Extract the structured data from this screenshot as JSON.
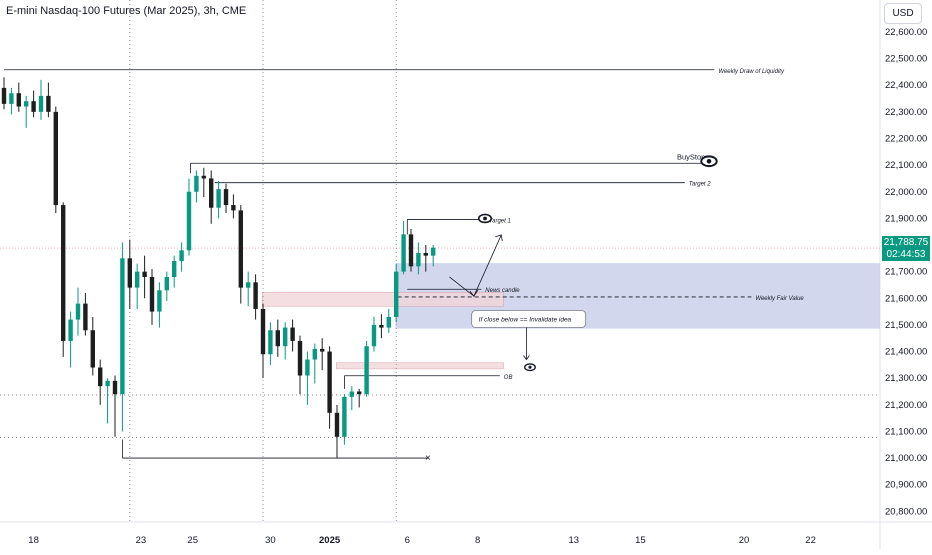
{
  "header": {
    "title": "E-mini Nasdaq-100 Futures (Mar 2025), 3h, CME",
    "currency": "USD"
  },
  "colors": {
    "up": "#089981",
    "down": "#1e1e1e",
    "fvg_zone": "#c7cdea",
    "ob_zone": "#f2d6db",
    "grid": "#9598a1"
  },
  "chart_data": {
    "type": "candlestick",
    "y_axis": {
      "ylim": [
        20760,
        22720
      ],
      "ticks": [
        20800,
        20900,
        21000,
        21100,
        21200,
        21300,
        21400,
        21500,
        21600,
        21700,
        21800,
        21900,
        22000,
        22100,
        22200,
        22300,
        22400,
        22500,
        22600
      ],
      "tick_labels": [
        "20,800.00",
        "20,900.00",
        "21,000.00",
        "21,100.00",
        "21,200.00",
        "21,300.00",
        "21,400.00",
        "21,500.00",
        "21,600.00",
        "21,700.00",
        "21,800.00",
        "21,900.00",
        "22,000.00",
        "22,100.00",
        "22,200.00",
        "22,300.00",
        "22,400.00",
        "22,500.00",
        "22,600.00"
      ]
    },
    "x_axis": {
      "labels": [
        {
          "label": "18",
          "bar": 4
        },
        {
          "label": "23",
          "bar": 18.5
        },
        {
          "label": "25",
          "bar": 25.5
        },
        {
          "label": "30",
          "bar": 36
        },
        {
          "label": "2025",
          "bar": 44
        },
        {
          "label": "6",
          "bar": 54.5
        },
        {
          "label": "8",
          "bar": 64
        },
        {
          "label": "13",
          "bar": 77
        },
        {
          "label": "15",
          "bar": 86
        },
        {
          "label": "20",
          "bar": 100
        },
        {
          "label": "22",
          "bar": 109
        }
      ],
      "vlines": [
        17,
        35,
        53
      ]
    },
    "candles": [
      [
        22390,
        22430,
        22310,
        22330
      ],
      [
        22330,
        22390,
        22290,
        22370
      ],
      [
        22370,
        22410,
        22300,
        22320
      ],
      [
        22320,
        22360,
        22240,
        22340
      ],
      [
        22340,
        22380,
        22280,
        22300
      ],
      [
        22300,
        22420,
        22270,
        22360
      ],
      [
        22360,
        22410,
        22280,
        22300
      ],
      [
        22300,
        22320,
        21920,
        21950
      ],
      [
        21950,
        21960,
        21380,
        21440
      ],
      [
        21440,
        21550,
        21340,
        21520
      ],
      [
        21520,
        21640,
        21460,
        21580
      ],
      [
        21580,
        21620,
        21460,
        21480
      ],
      [
        21480,
        21530,
        21310,
        21340
      ],
      [
        21340,
        21370,
        21200,
        21270
      ],
      [
        21270,
        21300,
        21130,
        21290
      ],
      [
        21290,
        21310,
        21080,
        21240
      ],
      [
        21240,
        21810,
        21100,
        21750
      ],
      [
        21750,
        21820,
        21560,
        21640
      ],
      [
        21640,
        21730,
        21560,
        21700
      ],
      [
        21700,
        21760,
        21600,
        21680
      ],
      [
        21680,
        21710,
        21500,
        21550
      ],
      [
        21550,
        21660,
        21490,
        21630
      ],
      [
        21630,
        21700,
        21590,
        21680
      ],
      [
        21680,
        21760,
        21640,
        21740
      ],
      [
        21740,
        21810,
        21700,
        21780
      ],
      [
        21780,
        22050,
        21760,
        22000
      ],
      [
        22000,
        22080,
        21960,
        22060
      ],
      [
        22060,
        22090,
        21980,
        22050
      ],
      [
        22050,
        22080,
        21880,
        21940
      ],
      [
        21940,
        22040,
        21900,
        22010
      ],
      [
        22010,
        22030,
        21920,
        21950
      ],
      [
        21950,
        21990,
        21900,
        21930
      ],
      [
        21930,
        21950,
        21580,
        21640
      ],
      [
        21640,
        21700,
        21570,
        21660
      ],
      [
        21660,
        21690,
        21520,
        21560
      ],
      [
        21560,
        21580,
        21300,
        21390
      ],
      [
        21390,
        21510,
        21350,
        21480
      ],
      [
        21480,
        21520,
        21380,
        21420
      ],
      [
        21420,
        21510,
        21370,
        21490
      ],
      [
        21490,
        21520,
        21400,
        21440
      ],
      [
        21440,
        21460,
        21240,
        21310
      ],
      [
        21310,
        21400,
        21200,
        21370
      ],
      [
        21370,
        21430,
        21280,
        21410
      ],
      [
        21410,
        21450,
        21330,
        21400
      ],
      [
        21400,
        21420,
        21110,
        21170
      ],
      [
        21170,
        21200,
        21000,
        21080
      ],
      [
        21080,
        21240,
        21050,
        21230
      ],
      [
        21230,
        21270,
        21180,
        21250
      ],
      [
        21250,
        21260,
        21190,
        21240
      ],
      [
        21240,
        21440,
        21230,
        21420
      ],
      [
        21420,
        21530,
        21400,
        21500
      ],
      [
        21500,
        21540,
        21450,
        21490
      ],
      [
        21490,
        21560,
        21470,
        21530
      ],
      [
        21530,
        21730,
        21510,
        21700
      ],
      [
        21700,
        21890,
        21690,
        21840
      ],
      [
        21840,
        21860,
        21700,
        21720
      ],
      [
        21720,
        21810,
        21690,
        21770
      ],
      [
        21770,
        21800,
        21700,
        21760
      ],
      [
        21760,
        21800,
        21720,
        21790
      ]
    ],
    "zones": [
      {
        "name": "Weekly Fair Value",
        "from_bar": 53.2,
        "y_top": 21732,
        "y_bottom": 21486,
        "color": "#c7cdea"
      },
      {
        "name": "OB",
        "from_bar": 35.2,
        "to_bar": 67.5,
        "y_top": 21622,
        "y_bottom": 21570,
        "color": "#f2d6db"
      },
      {
        "name": "OB zone lower",
        "from_bar": 45.2,
        "to_bar": 67.5,
        "y_top": 21358,
        "y_bottom": 21335,
        "color": "#f2d6db"
      }
    ],
    "levels": [
      {
        "label": "Weekly Draw of Liquidity",
        "y": 22458,
        "from_bar": 0,
        "to_bar": 96
      },
      {
        "label": "BuyStops",
        "y": 22107,
        "from_bar": 25.2,
        "to_bar": 95
      },
      {
        "label": "Target 2",
        "y": 22034,
        "from_bar": 28.5,
        "to_bar": 92
      },
      {
        "label": "Target 1",
        "y": 21896,
        "from_bar": 54.5,
        "to_bar": 65
      },
      {
        "label": "News candle",
        "y": 21634,
        "from_bar": 54.5,
        "to_bar": 64.5
      },
      {
        "label": "Weekly Fair Value",
        "y": 21605,
        "from_bar": 53.2,
        "to_bar": 101,
        "dashed": true
      },
      {
        "label": "OB",
        "y": 21309,
        "from_bar": 46,
        "to_bar": 67
      }
    ],
    "h_dotted": [
      21237,
      21077
    ],
    "current_price": {
      "value": 21788.75,
      "label": "21,788.75",
      "countdown": "02:44:53"
    },
    "annotations": {
      "invalidate_text": "If close below == Invalidate idea",
      "cross_mark": "×"
    }
  }
}
